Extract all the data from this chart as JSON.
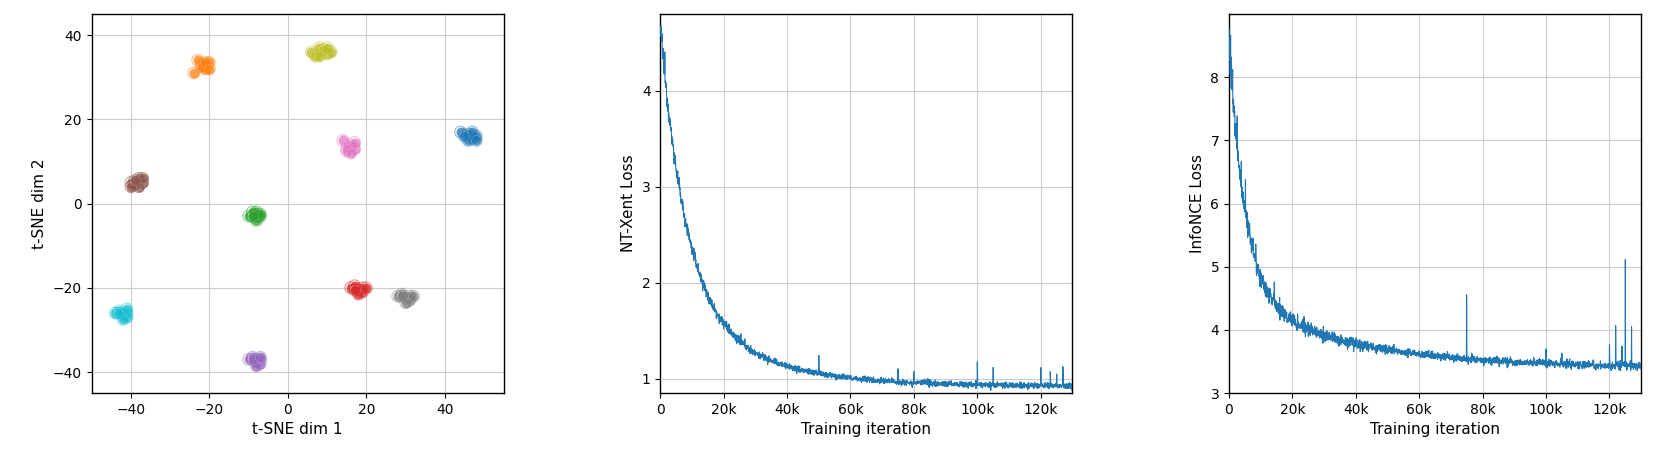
{
  "tsne": {
    "clusters": [
      {
        "color": "#ff7f0e",
        "points": [
          [
            -24,
            31
          ],
          [
            -22,
            33
          ],
          [
            -20,
            33.5
          ],
          [
            -21,
            32
          ],
          [
            -23,
            34
          ],
          [
            -22,
            32.5
          ],
          [
            -21,
            33.5
          ],
          [
            -20,
            32
          ]
        ]
      },
      {
        "color": "#bcbd22",
        "points": [
          [
            6,
            36
          ],
          [
            8,
            37
          ],
          [
            10,
            35.5
          ],
          [
            9,
            36.5
          ],
          [
            7,
            35
          ],
          [
            11,
            36
          ],
          [
            8,
            35
          ],
          [
            10,
            37
          ]
        ]
      },
      {
        "color": "#1f77b4",
        "points": [
          [
            44,
            17
          ],
          [
            46,
            16.5
          ],
          [
            47,
            15.5
          ],
          [
            48,
            16
          ],
          [
            46,
            15
          ],
          [
            47,
            17
          ],
          [
            45,
            16
          ],
          [
            48,
            15
          ]
        ]
      },
      {
        "color": "#8c564b",
        "points": [
          [
            -40,
            5
          ],
          [
            -38,
            6
          ],
          [
            -37,
            5
          ],
          [
            -38,
            4
          ],
          [
            -39,
            4.5
          ],
          [
            -40,
            4
          ],
          [
            -37,
            6
          ],
          [
            -39,
            5.5
          ]
        ]
      },
      {
        "color": "#2ca02c",
        "points": [
          [
            -10,
            -3
          ],
          [
            -8,
            -2
          ],
          [
            -8,
            -4
          ],
          [
            -7,
            -3
          ],
          [
            -9,
            -2
          ],
          [
            -8,
            -3.5
          ],
          [
            -7,
            -2.5
          ],
          [
            -9,
            -3
          ]
        ]
      },
      {
        "color": "#e377c2",
        "points": [
          [
            14,
            15
          ],
          [
            16,
            13.5
          ],
          [
            17,
            13
          ],
          [
            15,
            12.5
          ],
          [
            16,
            14
          ],
          [
            17,
            14.5
          ],
          [
            15,
            13
          ],
          [
            16,
            12
          ]
        ]
      },
      {
        "color": "#d62728",
        "points": [
          [
            16,
            -20
          ],
          [
            18,
            -20.5
          ],
          [
            19,
            -21
          ],
          [
            17,
            -19.5
          ],
          [
            19,
            -20
          ],
          [
            18,
            -21.5
          ],
          [
            17,
            -20.5
          ],
          [
            20,
            -20
          ]
        ]
      },
      {
        "color": "#7f7f7f",
        "points": [
          [
            28,
            -22
          ],
          [
            30,
            -22.5
          ],
          [
            31,
            -23
          ],
          [
            29,
            -21.5
          ],
          [
            31,
            -22
          ],
          [
            30,
            -23.5
          ],
          [
            29,
            -22
          ],
          [
            32,
            -22
          ]
        ]
      },
      {
        "color": "#17becf",
        "points": [
          [
            -44,
            -26
          ],
          [
            -42,
            -26.5
          ],
          [
            -41,
            -27
          ],
          [
            -43,
            -25.5
          ],
          [
            -41,
            -26
          ],
          [
            -42,
            -27.5
          ],
          [
            -43,
            -26
          ],
          [
            -41,
            -25
          ]
        ]
      },
      {
        "color": "#9467bd",
        "points": [
          [
            -10,
            -37
          ],
          [
            -8,
            -37.5
          ],
          [
            -7,
            -38
          ],
          [
            -9,
            -36.5
          ],
          [
            -7,
            -37
          ],
          [
            -8,
            -38.5
          ],
          [
            -9,
            -37
          ],
          [
            -7,
            -36.5
          ]
        ]
      }
    ],
    "xlim": [
      -50,
      55
    ],
    "ylim": [
      -45,
      45
    ],
    "xticks": [
      -40,
      -20,
      0,
      20,
      40
    ],
    "yticks": [
      -40,
      -20,
      0,
      20,
      40
    ],
    "xlabel": "t-SNE dim 1",
    "ylabel": "t-SNE dim 2"
  },
  "loss_curve_color": "#1f77b4",
  "ntxent": {
    "xlabel": "Training iteration",
    "ylabel": "NT-Xent Loss",
    "xlim": [
      0,
      130000
    ],
    "ylim": [
      0.85,
      4.8
    ],
    "yticks": [
      1.0,
      2.0,
      3.0,
      4.0
    ],
    "xticks": [
      0,
      20000,
      40000,
      60000,
      80000,
      100000,
      120000
    ],
    "xticklabels": [
      "0",
      "20k",
      "40k",
      "60k",
      "80k",
      "100k",
      "120k"
    ],
    "initial_value": 4.65,
    "decay1": 8000,
    "decay2": 25000,
    "base_level": 0.92,
    "amp1": 2.8,
    "amp2": 0.95
  },
  "infonce": {
    "xlabel": "Training iteration",
    "ylabel": "InfoNCE Loss",
    "xlim": [
      0,
      130000
    ],
    "ylim": [
      3.0,
      9.0
    ],
    "yticks": [
      3.0,
      4.0,
      5.0,
      6.0,
      7.0,
      8.0
    ],
    "xticks": [
      0,
      20000,
      40000,
      60000,
      80000,
      100000,
      120000
    ],
    "xticklabels": [
      "0",
      "20k",
      "40k",
      "60k",
      "80k",
      "100k",
      "120k"
    ],
    "initial_value": 8.6,
    "decay1": 5000,
    "decay2": 35000,
    "base_level": 3.4,
    "amp1": 4.0,
    "amp2": 1.2
  }
}
